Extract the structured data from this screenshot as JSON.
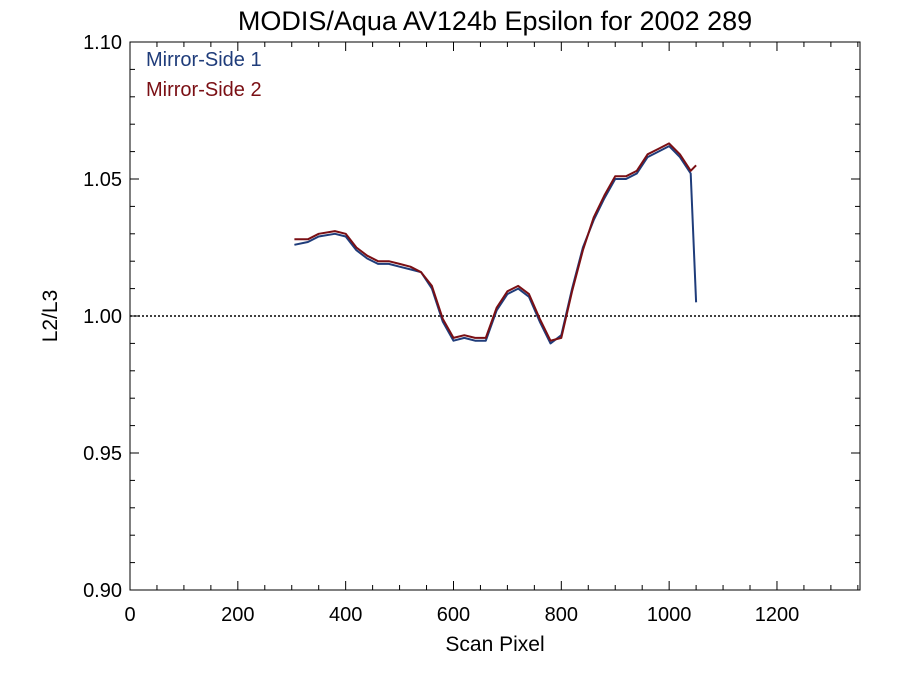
{
  "chart_data": {
    "type": "line",
    "title": "MODIS/Aqua AV124b Epsilon for 2002 289",
    "xlabel": "Scan Pixel",
    "ylabel": "L2/L3",
    "xlim": [
      0,
      1354
    ],
    "ylim": [
      0.9,
      1.1
    ],
    "x_ticks": [
      0,
      200,
      400,
      600,
      800,
      1000,
      1200
    ],
    "x_tick_labels": [
      "0",
      "200",
      "400",
      "600",
      "800",
      "1000",
      "1200"
    ],
    "y_ticks": [
      0.9,
      0.95,
      1.0,
      1.05,
      1.1
    ],
    "y_tick_labels": [
      "0.90",
      "0.95",
      "1.00",
      "1.05",
      "1.10"
    ],
    "reference_line": 1.0,
    "grid": false,
    "legend_position": "top-left",
    "series": [
      {
        "name": "Mirror-Side 1",
        "color": "#1f3c7a",
        "x": [
          305,
          330,
          350,
          380,
          400,
          420,
          440,
          460,
          480,
          500,
          520,
          540,
          560,
          580,
          600,
          620,
          640,
          660,
          680,
          700,
          720,
          740,
          760,
          780,
          800,
          820,
          840,
          860,
          880,
          900,
          920,
          940,
          960,
          980,
          1000,
          1020,
          1040,
          1050
        ],
        "values": [
          1.026,
          1.027,
          1.029,
          1.03,
          1.029,
          1.024,
          1.021,
          1.019,
          1.019,
          1.018,
          1.017,
          1.016,
          1.01,
          0.998,
          0.991,
          0.992,
          0.991,
          0.991,
          1.002,
          1.008,
          1.01,
          1.007,
          0.998,
          0.99,
          0.993,
          1.01,
          1.025,
          1.035,
          1.043,
          1.05,
          1.05,
          1.052,
          1.058,
          1.06,
          1.062,
          1.058,
          1.052,
          1.005
        ]
      },
      {
        "name": "Mirror-Side 2",
        "color": "#7a0f14",
        "x": [
          305,
          330,
          350,
          380,
          400,
          420,
          440,
          460,
          480,
          500,
          520,
          540,
          560,
          580,
          600,
          620,
          640,
          660,
          680,
          700,
          720,
          740,
          760,
          780,
          800,
          820,
          840,
          860,
          880,
          900,
          920,
          940,
          960,
          980,
          1000,
          1020,
          1040,
          1050
        ],
        "values": [
          1.028,
          1.028,
          1.03,
          1.031,
          1.03,
          1.025,
          1.022,
          1.02,
          1.02,
          1.019,
          1.018,
          1.016,
          1.011,
          0.999,
          0.992,
          0.993,
          0.992,
          0.992,
          1.003,
          1.009,
          1.011,
          1.008,
          0.999,
          0.991,
          0.992,
          1.009,
          1.024,
          1.036,
          1.044,
          1.051,
          1.051,
          1.053,
          1.059,
          1.061,
          1.063,
          1.059,
          1.053,
          1.055
        ]
      }
    ]
  }
}
